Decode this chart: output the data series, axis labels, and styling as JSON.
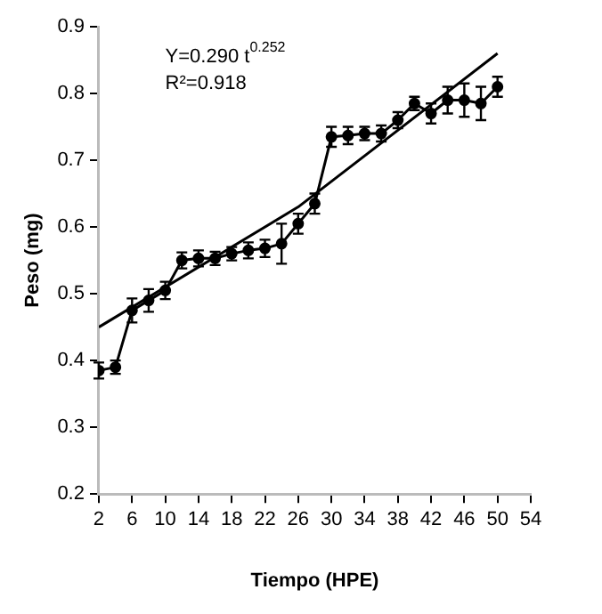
{
  "chart_data": {
    "type": "line",
    "xlabel": "Tiempo (HPE)",
    "ylabel": "Peso (mg)",
    "annotations": [
      "Y=0.290 t$^{0.252}$",
      "R²=0.918"
    ],
    "xlim": [
      2,
      54
    ],
    "xticks": [
      2,
      6,
      10,
      14,
      18,
      22,
      26,
      30,
      34,
      38,
      42,
      46,
      50,
      54
    ],
    "ylim": [
      0.2,
      0.9
    ],
    "yticks": [
      0.2,
      0.3,
      0.4,
      0.5,
      0.6,
      0.7,
      0.8,
      0.9
    ],
    "grid": false,
    "legend": false,
    "marker": "circle",
    "line_style": "solid",
    "series": [
      {
        "color": "#000000",
        "x": [
          2,
          4,
          6,
          8,
          10,
          12,
          14,
          16,
          18,
          20,
          22,
          24,
          26,
          28,
          30,
          32,
          34,
          36,
          38,
          40,
          42,
          44,
          46,
          48,
          50
        ],
        "values": [
          0.385,
          0.39,
          0.475,
          0.49,
          0.505,
          0.55,
          0.553,
          0.553,
          0.56,
          0.565,
          0.568,
          0.575,
          0.605,
          0.635,
          0.735,
          0.737,
          0.74,
          0.74,
          0.76,
          0.785,
          0.77,
          0.79,
          0.79,
          0.785,
          0.81
        ],
        "errors": [
          0.012,
          0.01,
          0.018,
          0.017,
          0.013,
          0.012,
          0.012,
          0.01,
          0.01,
          0.012,
          0.013,
          0.03,
          0.015,
          0.015,
          0.015,
          0.013,
          0.01,
          0.012,
          0.012,
          0.01,
          0.015,
          0.02,
          0.025,
          0.025,
          0.015
        ]
      },
      {
        "color": "#000000",
        "marker": "none",
        "x": [
          2,
          26,
          50
        ],
        "values": [
          0.45,
          0.63,
          0.86
        ]
      }
    ]
  }
}
